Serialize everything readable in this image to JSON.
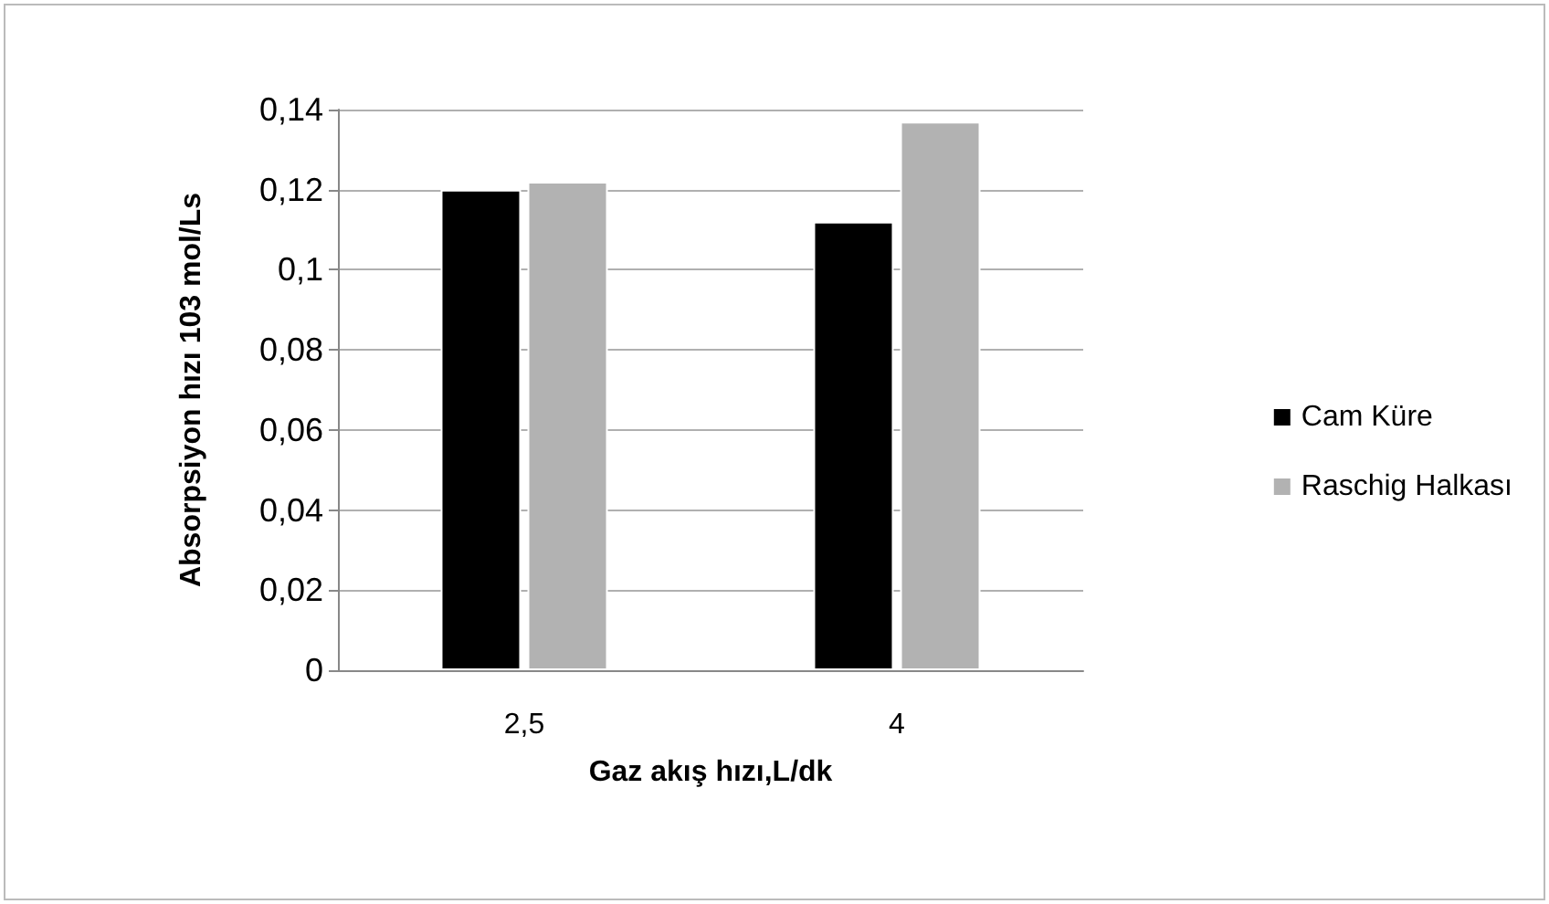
{
  "chart_data": {
    "type": "bar",
    "xlabel": "Gaz akış hızı,L/dk",
    "ylabel": "Absorpsiyon hızı 103 mol/Ls",
    "categories": [
      "2,5",
      "4"
    ],
    "series": [
      {
        "name": "Cam Küre",
        "color": "#000000",
        "values": [
          0.12,
          0.112
        ]
      },
      {
        "name": "Raschig Halkası",
        "color": "#b2b2b2",
        "values": [
          0.122,
          0.137
        ]
      }
    ],
    "ylim": [
      0,
      0.14
    ],
    "yticks": [
      0,
      {
        "value": 0.02,
        "label": "0,02"
      },
      {
        "value": 0.04,
        "label": "0,04"
      },
      {
        "value": 0.06,
        "label": "0,06"
      },
      {
        "value": 0.08,
        "label": "0,08"
      },
      {
        "value": 0.1,
        "label": "0,1"
      },
      {
        "value": 0.12,
        "label": "0,12"
      },
      {
        "value": 0.14,
        "label": "0,14"
      }
    ],
    "grid": "y",
    "legend": "right"
  }
}
